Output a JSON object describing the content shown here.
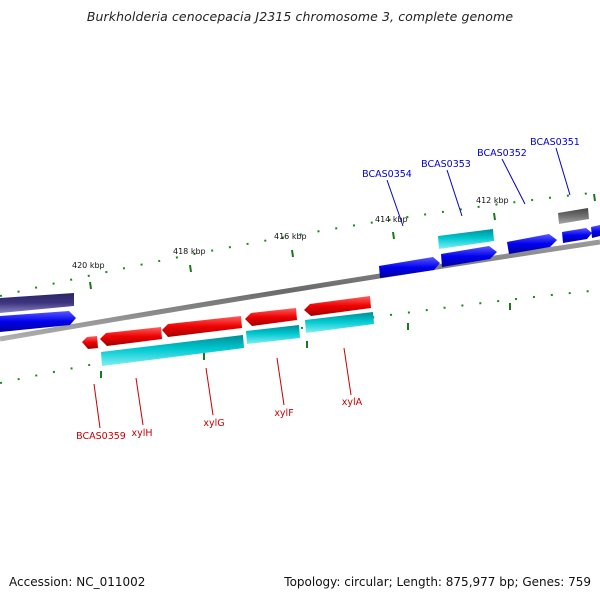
{
  "title": "Burkholderia cenocepacia J2315 chromosome 3, complete genome",
  "footer": {
    "accession": "Accession: NC_011002",
    "topology": "Topology: circular; Length: 875,977 bp; Genes: 759"
  },
  "scale": {
    "kbp_labels": [
      "420 kbp",
      "418 kbp",
      "416 kbp",
      "414 kbp",
      "412 kbp"
    ]
  },
  "genes_top": {
    "labels": [
      "BCAS0354",
      "BCAS0353",
      "BCAS0352",
      "BCAS0351"
    ],
    "label_color": "#0000cc"
  },
  "genes_bottom": {
    "labels": [
      "BCAS0359",
      "xylH",
      "xylG",
      "xylF",
      "xylA"
    ],
    "label_color": "#cc0000"
  },
  "colors": {
    "forward_cds": "#0000ee",
    "reverse_cds": "#ee0000",
    "gene_cyan": "#00c8d0",
    "pseudo_gray": "#666666",
    "gene_purple": "#3d3580",
    "backbone": "#7a7a7a",
    "tick": "#1a7a1a"
  }
}
